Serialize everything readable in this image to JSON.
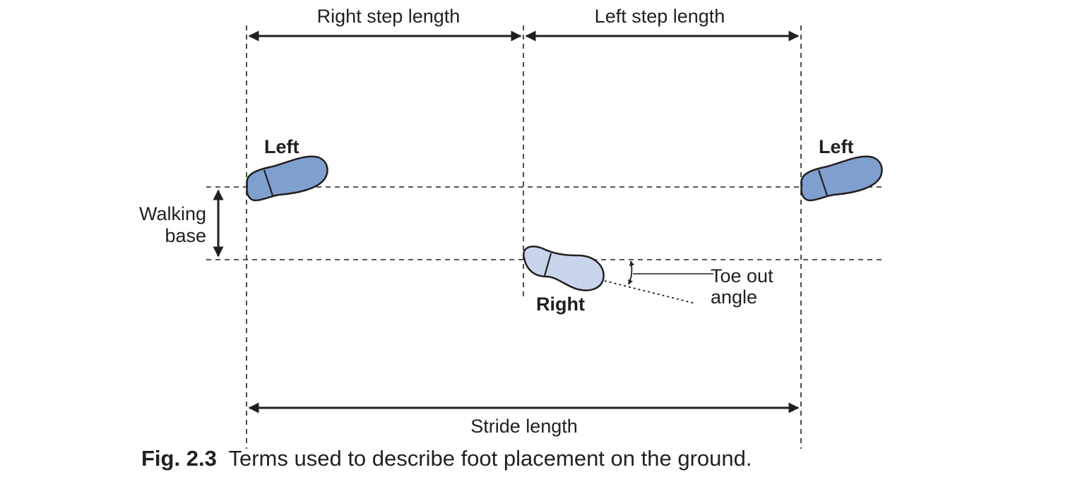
{
  "labels": {
    "right_step_length": "Right step length",
    "left_step_length": "Left step length",
    "walking_base_line1": "Walking",
    "walking_base_line2": "base",
    "stride_length": "Stride length",
    "toe_out_line1": "Toe out",
    "toe_out_line2": "angle"
  },
  "feet": {
    "left_first": "Left",
    "right": "Right",
    "left_second": "Left"
  },
  "colors": {
    "left_foot": "#7f9fcf",
    "right_foot": "#c9d5ec",
    "ink": "#231f20"
  },
  "caption": {
    "number": "Fig. 2.3",
    "text": "Terms used to describe foot placement on the ground."
  }
}
